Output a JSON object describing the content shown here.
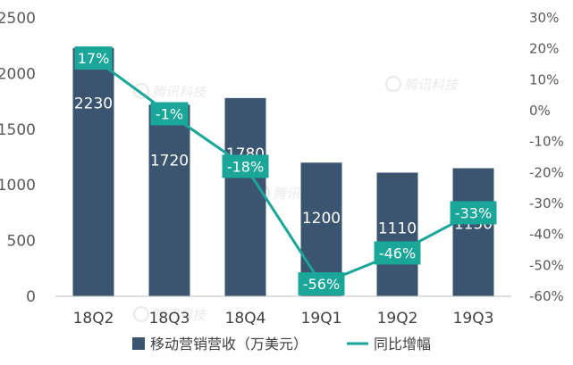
{
  "chart_data": {
    "type": "bar",
    "categories": [
      "18Q2",
      "18Q3",
      "18Q4",
      "19Q1",
      "19Q2",
      "19Q3"
    ],
    "series": [
      {
        "name": "移动营销营收（万美元）",
        "type": "bar",
        "axis": "left",
        "values": [
          2230,
          1720,
          1780,
          1200,
          1110,
          1150
        ],
        "labels": [
          "2230",
          "1720",
          "1780",
          "1200",
          "1110",
          "1150"
        ],
        "color": "#3b5470"
      },
      {
        "name": "同比增幅",
        "type": "line",
        "axis": "right",
        "values": [
          17,
          -1,
          -18,
          -56,
          -46,
          -33
        ],
        "labels": [
          "17%",
          "-1%",
          "-18%",
          "-56%",
          "-46%",
          "-33%"
        ],
        "color": "#1aa79a"
      }
    ],
    "y_left": {
      "min": 0,
      "max": 2500,
      "ticks": [
        "0",
        "500",
        "1000",
        "1500",
        "2000",
        "2500"
      ]
    },
    "y_right": {
      "min": -60,
      "max": 30,
      "ticks": [
        "-60%",
        "-50%",
        "-40%",
        "-30%",
        "-20%",
        "-10%",
        "0%",
        "10%",
        "20%",
        "30%"
      ]
    },
    "legend_position": "bottom",
    "grid": false
  },
  "watermarks": [
    "腾讯科技",
    "腾讯科技",
    "腾讯科技",
    "腾讯科技"
  ]
}
